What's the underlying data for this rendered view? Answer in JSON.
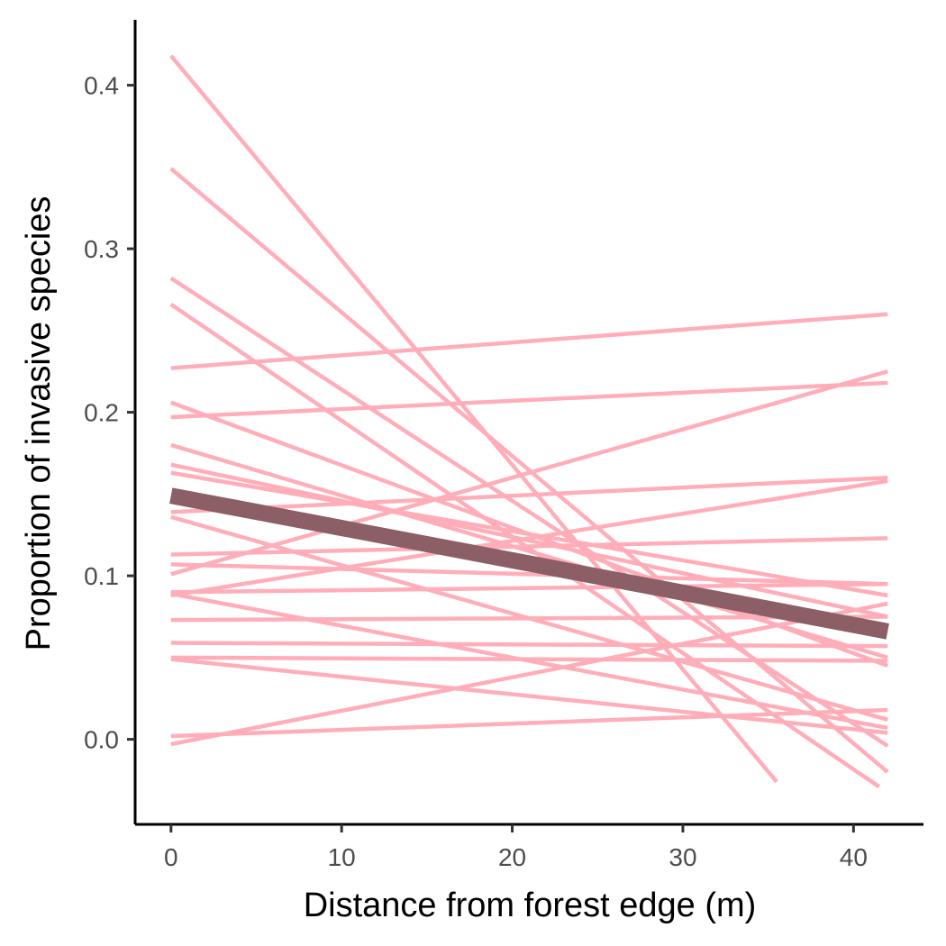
{
  "chart_data": {
    "type": "line",
    "title": "",
    "xlabel": "Distance from forest edge (m)",
    "ylabel": "Proportion of invasive species",
    "xlim": [
      -2.1,
      44.1
    ],
    "ylim": [
      -0.052,
      0.44
    ],
    "x_ticks": [
      0,
      10,
      20,
      30,
      40
    ],
    "y_ticks": [
      0.0,
      0.1,
      0.2,
      0.3,
      0.4
    ],
    "y_tick_labels": [
      "0.0",
      "0.1",
      "0.2",
      "0.3",
      "0.4"
    ],
    "grid": false,
    "legend": "none",
    "colors": {
      "group_lines": "#ffaeb9",
      "overall_line": "#8b5f65",
      "axis": "#000000",
      "tick_labels": "#4d4d4d"
    },
    "group_lines": [
      {
        "x": [
          0,
          35.5
        ],
        "y": [
          0.418,
          -0.026
        ]
      },
      {
        "x": [
          0,
          42
        ],
        "y": [
          0.349,
          -0.02
        ]
      },
      {
        "x": [
          0,
          42
        ],
        "y": [
          0.282,
          -0.004
        ]
      },
      {
        "x": [
          0,
          41.5
        ],
        "y": [
          0.266,
          -0.029
        ]
      },
      {
        "x": [
          0,
          42
        ],
        "y": [
          0.227,
          0.26
        ]
      },
      {
        "x": [
          0,
          42
        ],
        "y": [
          0.206,
          0.045
        ]
      },
      {
        "x": [
          0,
          42
        ],
        "y": [
          0.197,
          0.218
        ]
      },
      {
        "x": [
          0,
          42
        ],
        "y": [
          0.18,
          0.05
        ]
      },
      {
        "x": [
          0,
          42
        ],
        "y": [
          0.168,
          0.075
        ]
      },
      {
        "x": [
          0,
          42
        ],
        "y": [
          0.163,
          0.088
        ]
      },
      {
        "x": [
          0,
          42
        ],
        "y": [
          0.139,
          0.16
        ]
      },
      {
        "x": [
          0,
          42
        ],
        "y": [
          0.136,
          0.012
        ]
      },
      {
        "x": [
          0,
          42
        ],
        "y": [
          0.113,
          0.123
        ]
      },
      {
        "x": [
          0,
          42
        ],
        "y": [
          0.107,
          0.095
        ]
      },
      {
        "x": [
          0,
          42
        ],
        "y": [
          0.101,
          0.225
        ]
      },
      {
        "x": [
          0,
          42
        ],
        "y": [
          0.09,
          0.095
        ]
      },
      {
        "x": [
          0,
          42
        ],
        "y": [
          0.088,
          0.158
        ]
      },
      {
        "x": [
          0,
          42
        ],
        "y": [
          0.089,
          0.007
        ]
      },
      {
        "x": [
          0,
          42
        ],
        "y": [
          0.073,
          0.075
        ]
      },
      {
        "x": [
          0,
          42
        ],
        "y": [
          0.059,
          0.057
        ]
      },
      {
        "x": [
          0,
          42
        ],
        "y": [
          0.05,
          0.048
        ]
      },
      {
        "x": [
          0,
          42
        ],
        "y": [
          0.049,
          0.004
        ]
      },
      {
        "x": [
          0,
          42
        ],
        "y": [
          0.002,
          0.018
        ]
      },
      {
        "x": [
          0,
          42
        ],
        "y": [
          -0.003,
          0.083
        ]
      }
    ],
    "overall_line": {
      "x": [
        0,
        42
      ],
      "y": [
        0.149,
        0.066
      ]
    }
  }
}
